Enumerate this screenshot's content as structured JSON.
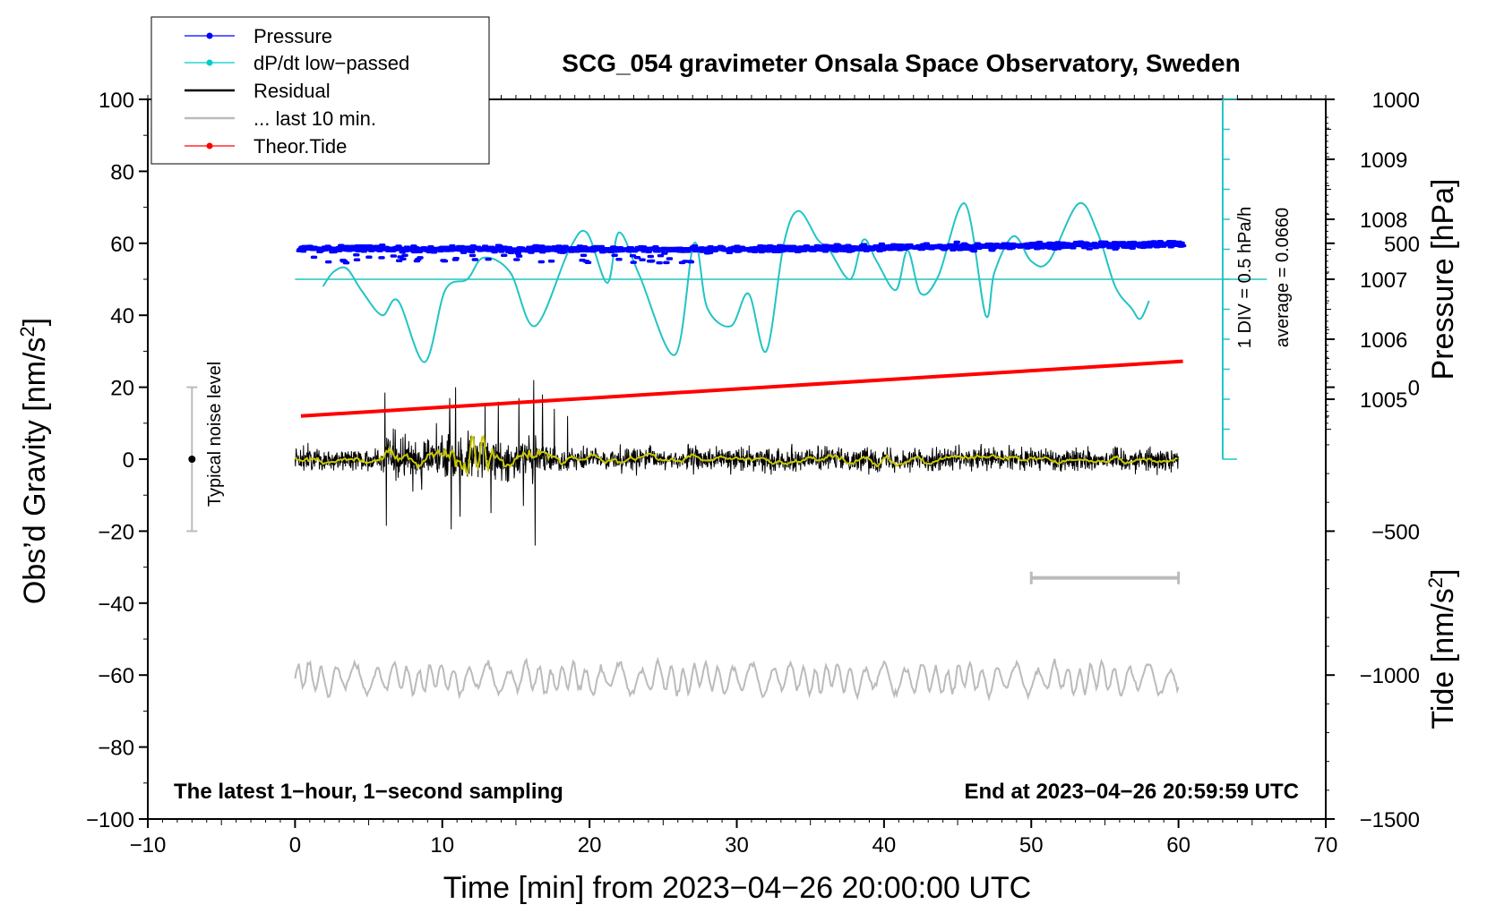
{
  "chart_data": {
    "type": "line",
    "title": "SCG_054 gravimeter Onsala Space Observatory, Sweden",
    "xlabel": "Time [min] from 2023−04−26 20:00:00 UTC",
    "ylabel_left": "Obs’d Gravity [nm/s2]",
    "ylabel_left_parts": [
      "Obs’d Gravity [nm/s",
      "2",
      "]"
    ],
    "ylabel_pressure": "Pressure [hPa]",
    "ylabel_tide": "Tide [nm/s2]",
    "ylabel_tide_parts": [
      "Tide [nm/s",
      "2",
      "]"
    ],
    "xlim": [
      -10,
      70
    ],
    "ylim_left": [
      -100,
      100
    ],
    "ylim_tide": [
      -1500,
      1000
    ],
    "x_ticks": [
      -10,
      0,
      10,
      20,
      30,
      40,
      50,
      60,
      70
    ],
    "x_tick_labels": [
      "−10",
      "0",
      "10",
      "20",
      "30",
      "40",
      "50",
      "60",
      "70"
    ],
    "y_left_ticks": [
      -100,
      -80,
      -60,
      -40,
      -20,
      0,
      20,
      40,
      60,
      80,
      100
    ],
    "y_left_tick_labels": [
      "−100",
      "−80",
      "−60",
      "−40",
      "−20",
      "0",
      "20",
      "40",
      "60",
      "80",
      "100"
    ],
    "pressure_axis": {
      "ticks": [
        1005,
        1006,
        1007,
        1008,
        1009
      ],
      "tick_labels": [
        "1005",
        "1006",
        "1007",
        "1008",
        "1009"
      ],
      "left_equivalent_at_1007": 50,
      "left_units_per_hPa": 16.67
    },
    "tide_ticks": [
      -1500,
      -1000,
      -500,
      0,
      500,
      1000
    ],
    "tide_tick_labels": [
      "−1500",
      "−1000",
      "−500",
      "0",
      "500",
      "1000"
    ],
    "legend": {
      "placement": "top-left",
      "entries": [
        {
          "label": "Pressure",
          "color": "#0000ff",
          "marker": true
        },
        {
          "label": "dP/dt low−passed",
          "color": "#00cccc",
          "marker": true
        },
        {
          "label": "Residual",
          "color": "#000000",
          "marker": false
        },
        {
          "label": "... last 10 min.",
          "color": "#bbbbbb",
          "marker": false
        },
        {
          "label": "Theor.Tide",
          "color": "#ff0000",
          "marker": true
        }
      ]
    },
    "annotations": {
      "noise_label": "Typical noise level",
      "noise_level": {
        "x": -7,
        "center": 0,
        "low": -20,
        "high": 20
      },
      "dpdt_scale": "1 DIV = 0.5 hPa/h",
      "dpdt_average": "average = 0.0660",
      "dpdt_scale_axis": {
        "x": 63,
        "bottom": 0,
        "top": 100,
        "baseline": 50,
        "divisions": 12
      },
      "footer_left": "The latest 1−hour, 1−second sampling",
      "footer_right": "End at 2023−04−26 20:59:59 UTC",
      "ten_min_bar": {
        "x_start": 50,
        "x_end": 60,
        "y": -33
      }
    },
    "series": [
      {
        "name": "Pressure",
        "color": "#0000ff",
        "x_range": [
          0.3,
          60.3
        ],
        "level_start": 58.5,
        "level_mid": 58.3,
        "level_end": 59.8
      },
      {
        "name": "dP/dt low-passed",
        "color": "#22c4c4",
        "baseline": 50,
        "x": [
          1.9,
          2.6,
          3.5,
          4.5,
          5.9,
          7.0,
          8.8,
          10.2,
          11.7,
          12.8,
          14.6,
          16.3,
          18.6,
          19.8,
          21.2,
          22.0,
          23.4,
          25.8,
          27.1,
          28.0,
          29.6,
          30.8,
          32.0,
          33.2,
          34.2,
          35.5,
          36.3,
          37.7,
          38.6,
          39.5,
          40.8,
          41.6,
          42.5,
          43.7,
          45.5,
          46.9,
          47.5,
          48.8,
          50.0,
          51.2,
          53.2,
          54.5,
          55.7,
          56.8,
          57.4,
          58.0
        ],
        "y": [
          48,
          52,
          53,
          47,
          40,
          44,
          27,
          47,
          50,
          56,
          52,
          37,
          58,
          63,
          49,
          63,
          51,
          29,
          60,
          42,
          37,
          46,
          30,
          60,
          69,
          61,
          58,
          50,
          61,
          55,
          47,
          58,
          46,
          51,
          71,
          40,
          52,
          62,
          55,
          55,
          71,
          63,
          48,
          42,
          39,
          44
        ]
      },
      {
        "name": "Residual",
        "color": "#000000",
        "x_range": [
          0,
          60
        ],
        "center": 0,
        "typical_amplitude": 3,
        "max": 22,
        "min": -24,
        "burst_minutes": [
          6,
          17
        ]
      },
      {
        "name": "Residual low-passed",
        "color": "#c8c800",
        "x_range": [
          0,
          60
        ],
        "center": 0
      },
      {
        "name": "Theor.Tide",
        "color": "#ff0000",
        "axis": "tide",
        "x": [
          0.4,
          60.3
        ],
        "y": [
          -100,
          90
        ]
      },
      {
        "name": "Last 10 min. (replotted)",
        "color": "#bbbbbb",
        "x_range": [
          0,
          60
        ],
        "center": -61,
        "amplitude": 4
      }
    ]
  }
}
